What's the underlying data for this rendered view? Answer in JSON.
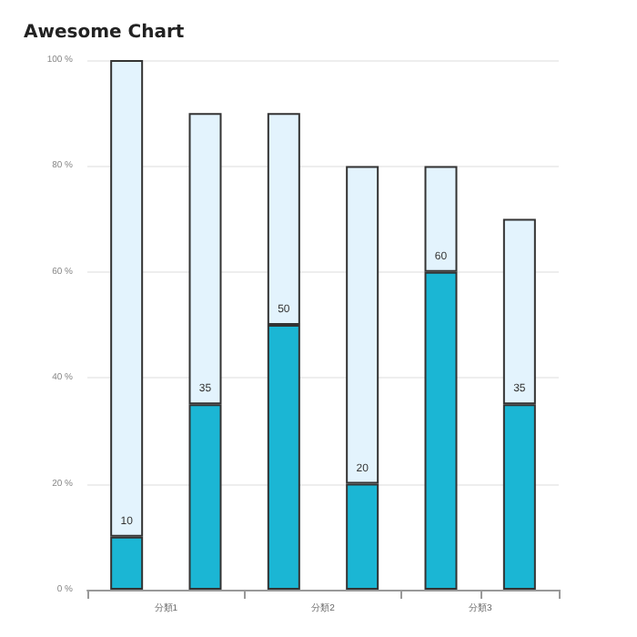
{
  "chart_data": {
    "type": "bar",
    "title": "Awesome Chart",
    "categories": [
      "分類1",
      null,
      "分類2",
      null,
      "分類3",
      null
    ],
    "stacked": true,
    "series": [
      {
        "color": "#1bb6d4",
        "values": [
          10,
          35,
          50,
          20,
          60,
          35
        ],
        "value_labels": [
          "10",
          "35",
          "50",
          "20",
          "60",
          "35"
        ]
      },
      {
        "color": "#e3f3fd",
        "values": [
          90,
          55,
          40,
          60,
          20,
          35
        ]
      }
    ],
    "ylim": [
      0,
      100
    ],
    "yticks": [
      {
        "value": 0,
        "label": "0 %"
      },
      {
        "value": 20,
        "label": "20 %"
      },
      {
        "value": 40,
        "label": "40 %"
      },
      {
        "value": 60,
        "label": "60 %"
      },
      {
        "value": 80,
        "label": "80 %"
      },
      {
        "value": 100,
        "label": "100 %"
      }
    ],
    "grid": "y"
  }
}
